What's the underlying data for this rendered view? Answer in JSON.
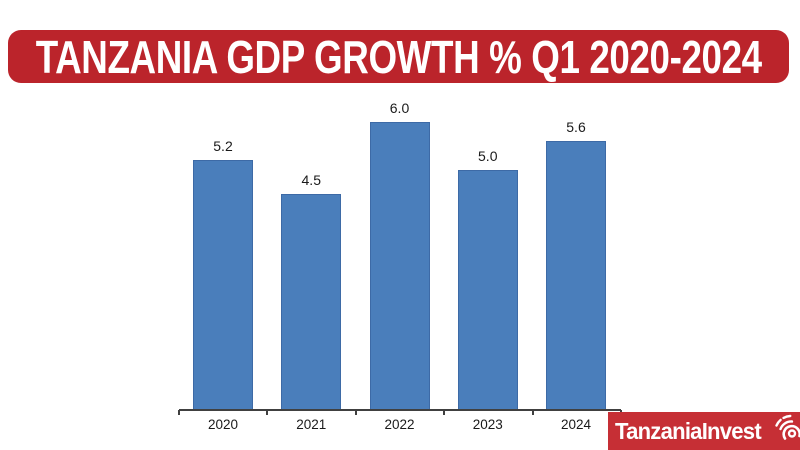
{
  "banner": {
    "title": "TANZANIA GDP GROWTH % Q1 2020-2024",
    "bg_color": "#bb242b",
    "text_color": "#ffffff"
  },
  "chart_data": {
    "type": "bar",
    "title": "TANZANIA GDP GROWTH % Q1 2020-2024",
    "categories": [
      "2020",
      "2021",
      "2022",
      "2023",
      "2024"
    ],
    "values": [
      5.2,
      4.5,
      6.0,
      5.0,
      5.6
    ],
    "value_labels": [
      "5.2",
      "4.5",
      "6.0",
      "5.0",
      "5.6"
    ],
    "xlabel": "",
    "ylabel": "",
    "ylim": [
      0,
      6.6
    ],
    "grid": false,
    "legend": false,
    "bar_color": "#4a7ebb",
    "bar_border_color": "#3d6aa6",
    "axis_color": "#404040",
    "label_color": "#1a1a1a"
  },
  "logo": {
    "text": "TanzaniaInvest",
    "bg_color": "#c62f35",
    "text_color": "#ffffff",
    "icon": "signal-swirl-icon"
  }
}
